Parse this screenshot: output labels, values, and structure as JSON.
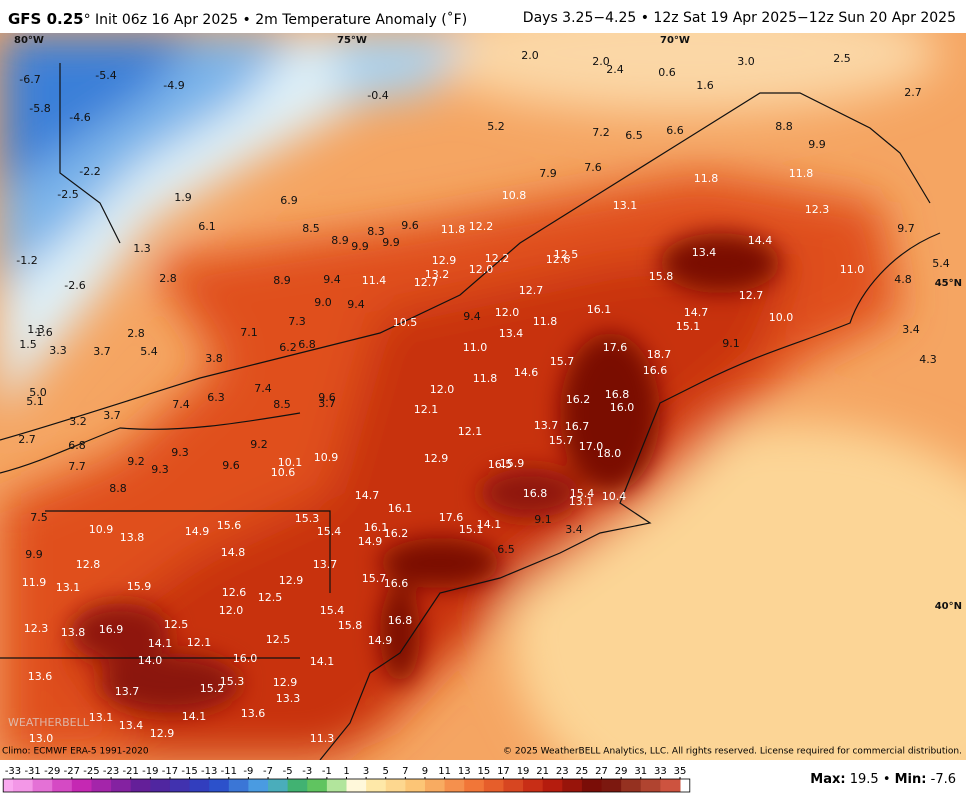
{
  "header": {
    "model": "GFS 0.25",
    "title": "° Init 06z 16 Apr 2025 • 2m Temperature Anomaly (˚F)",
    "valid": "Days 3.25−4.25 • 12z Sat 19 Apr 2025−12z Sun 20 Apr 2025"
  },
  "grid_labels": [
    "80°W",
    "75°W",
    "70°W",
    "45°N",
    "40°N"
  ],
  "map_labels": [
    "-6.7",
    "-5.4",
    "-4.9",
    "-0.4",
    "-5.8",
    "-4.6",
    "2.0",
    "2.0",
    "2.4",
    "0.6",
    "1.6",
    "3.0",
    "2.5",
    "2.7",
    "5.2",
    "7.2",
    "6.5",
    "6.6",
    "8.8",
    "9.9",
    "-2.2",
    "7.9",
    "7.6",
    "11.8",
    "11.8",
    "-2.5",
    "1.9",
    "6.9",
    "10.8",
    "13.1",
    "12.3",
    "6.1",
    "8.5",
    "8.3",
    "9.6",
    "11.8",
    "12.2",
    "9.7",
    "8.9",
    "9.9",
    "9.9",
    "14.4",
    "1.3",
    "13.4",
    "-1.2",
    "12.9",
    "12.2",
    "12.5",
    "12.6",
    "12.0",
    "5.4",
    "13.2",
    "2.8",
    "8.9",
    "9.4",
    "11.4",
    "12.7",
    "15.8",
    "11.0",
    "4.8",
    "-2.6",
    "12.7",
    "12.7",
    "9.0",
    "9.4",
    "12.0",
    "16.1",
    "14.7",
    "10.0",
    "3.4",
    "1.3",
    "1.6",
    "7.3",
    "10.5",
    "9.4",
    "11.8",
    "15.1",
    "2.8",
    "7.1",
    "13.4",
    "1.5",
    "3.3",
    "3.7",
    "5.4",
    "6.2",
    "6.8",
    "11.0",
    "17.6",
    "9.1",
    "18.7",
    "3.8",
    "15.7",
    "4.3",
    "14.6",
    "16.6",
    "11.8",
    "12.0",
    "7.4",
    "5.0",
    "5.1",
    "6.3",
    "9.6",
    "16.8",
    "16.2",
    "7.4",
    "8.5",
    "3.7",
    "16.0",
    "12.1",
    "3.2",
    "3.7",
    "13.7",
    "16.7",
    "12.1",
    "2.7",
    "6.8",
    "9.2",
    "15.7",
    "17.0",
    "9.3",
    "18.0",
    "9.2",
    "12.9",
    "10.9",
    "10.1",
    "16.5",
    "15.9",
    "7.7",
    "9.3",
    "9.6",
    "10.6",
    "8.8",
    "16.8",
    "15.4",
    "10.4",
    "14.7",
    "13.1",
    "16.1",
    "7.5",
    "15.3",
    "17.6",
    "14.1",
    "9.1",
    "3.4",
    "15.6",
    "15.4",
    "16.1",
    "15.1",
    "10.9",
    "14.9",
    "13.8",
    "16.2",
    "14.9",
    "9.9",
    "14.8",
    "6.5",
    "12.8",
    "13.7",
    "15.9",
    "12.9",
    "15.7",
    "16.6",
    "11.9",
    "13.1",
    "12.6",
    "12.5",
    "12.0",
    "15.4",
    "16.8",
    "15.8",
    "12.5",
    "12.3",
    "13.8",
    "16.9",
    "14.9",
    "14.1",
    "12.1",
    "12.5",
    "16.0",
    "14.0",
    "14.1",
    "13.6",
    "15.3",
    "12.9",
    "15.2",
    "13.7",
    "13.3",
    "13.6",
    "13.1",
    "14.1",
    "13.4",
    "12.9",
    "13.0",
    "11.3"
  ],
  "watermark": "WEATHERBELL",
  "climo": "Climo: ECMWF ERA-5 1991-2020",
  "copyright": "© 2025 WeatherBELL Analytics, LLC. All rights reserved. License required for commercial distribution.",
  "colorbar_ticks": [
    -33,
    -31,
    -29,
    -27,
    -25,
    -23,
    -21,
    -19,
    -17,
    -15,
    -13,
    -11,
    -9,
    -7,
    -5,
    -3,
    -1,
    1,
    3,
    5,
    7,
    9,
    11,
    13,
    15,
    17,
    19,
    21,
    23,
    25,
    27,
    29,
    31,
    33,
    35
  ],
  "stats": {
    "max_label": "Max:",
    "max": 19.5,
    "separator": "•",
    "min_label": "Min:",
    "min": -7.6
  }
}
